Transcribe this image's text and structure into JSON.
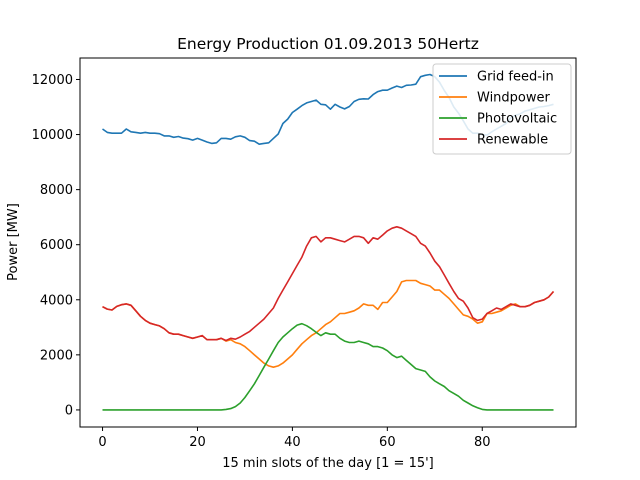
{
  "chart_data": {
    "type": "line",
    "title": "Energy Production 01.09.2013 50Hertz",
    "xlabel": "15 min slots of the day [1 = 15']",
    "ylabel": "Power [MW]",
    "xlim": [
      -4.75,
      99.75
    ],
    "ylim": [
      -620,
      12780
    ],
    "xticks": [
      0,
      20,
      40,
      60,
      80
    ],
    "yticks": [
      0,
      2000,
      4000,
      6000,
      8000,
      10000,
      12000
    ],
    "legend_position": "top-right",
    "grid": false,
    "x": [
      0,
      1,
      2,
      3,
      4,
      5,
      6,
      7,
      8,
      9,
      10,
      11,
      12,
      13,
      14,
      15,
      16,
      17,
      18,
      19,
      20,
      21,
      22,
      23,
      24,
      25,
      26,
      27,
      28,
      29,
      30,
      31,
      32,
      33,
      34,
      35,
      36,
      37,
      38,
      39,
      40,
      41,
      42,
      43,
      44,
      45,
      46,
      47,
      48,
      49,
      50,
      51,
      52,
      53,
      54,
      55,
      56,
      57,
      58,
      59,
      60,
      61,
      62,
      63,
      64,
      65,
      66,
      67,
      68,
      69,
      70,
      71,
      72,
      73,
      74,
      75,
      76,
      77,
      78,
      79,
      80,
      81,
      82,
      83,
      84,
      85,
      86,
      87,
      88,
      89,
      90,
      91,
      92,
      93,
      94,
      95
    ],
    "series": [
      {
        "name": "Grid feed-in",
        "color": "#1f77b4",
        "values": [
          10200,
          10080,
          10050,
          10050,
          10050,
          10200,
          10100,
          10080,
          10050,
          10080,
          10050,
          10050,
          10030,
          9950,
          9950,
          9900,
          9930,
          9870,
          9850,
          9800,
          9860,
          9800,
          9730,
          9680,
          9700,
          9860,
          9860,
          9830,
          9920,
          9950,
          9900,
          9780,
          9760,
          9650,
          9680,
          9700,
          9860,
          10020,
          10400,
          10560,
          10800,
          10920,
          11050,
          11150,
          11200,
          11250,
          11100,
          11080,
          10920,
          11100,
          11000,
          10930,
          11020,
          11200,
          11280,
          11300,
          11290,
          11450,
          11560,
          11610,
          11610,
          11690,
          11760,
          11710,
          11790,
          11800,
          11830,
          12100,
          12150,
          12180,
          12100,
          11900,
          11600,
          11350,
          11000,
          10780,
          10500,
          10200,
          10050,
          10050,
          10000,
          9980,
          10100,
          10200,
          10300,
          10400,
          10600,
          10700,
          10750,
          10850,
          10900,
          10950,
          11000,
          11020,
          11050,
          11100
        ]
      },
      {
        "name": "Windpower",
        "color": "#ff7f0e",
        "values": [
          3750,
          3660,
          3630,
          3760,
          3820,
          3850,
          3800,
          3600,
          3400,
          3250,
          3150,
          3100,
          3050,
          2950,
          2800,
          2750,
          2750,
          2700,
          2650,
          2600,
          2650,
          2700,
          2550,
          2550,
          2550,
          2600,
          2500,
          2550,
          2450,
          2400,
          2300,
          2150,
          2000,
          1850,
          1700,
          1600,
          1550,
          1600,
          1700,
          1850,
          2000,
          2200,
          2400,
          2550,
          2700,
          2800,
          2950,
          3100,
          3200,
          3350,
          3500,
          3500,
          3550,
          3600,
          3700,
          3850,
          3800,
          3800,
          3650,
          3900,
          3900,
          4100,
          4300,
          4650,
          4700,
          4700,
          4700,
          4600,
          4550,
          4500,
          4350,
          4350,
          4200,
          4050,
          3850,
          3650,
          3450,
          3400,
          3300,
          3150,
          3200,
          3500,
          3500,
          3550,
          3600,
          3700,
          3800,
          3850,
          3750,
          3750,
          3800,
          3900,
          3950,
          4000,
          4100,
          4300
        ]
      },
      {
        "name": "Photovoltaic",
        "color": "#2ca02c",
        "values": [
          0,
          0,
          0,
          0,
          0,
          0,
          0,
          0,
          0,
          0,
          0,
          0,
          0,
          0,
          0,
          0,
          0,
          0,
          0,
          0,
          0,
          0,
          0,
          0,
          0,
          0,
          20,
          50,
          120,
          250,
          450,
          700,
          950,
          1250,
          1550,
          1850,
          2150,
          2450,
          2650,
          2800,
          2950,
          3080,
          3130,
          3060,
          2950,
          2820,
          2700,
          2800,
          2750,
          2750,
          2600,
          2500,
          2450,
          2450,
          2500,
          2450,
          2400,
          2300,
          2300,
          2250,
          2150,
          2000,
          1900,
          1950,
          1800,
          1650,
          1500,
          1450,
          1400,
          1200,
          1050,
          950,
          850,
          700,
          600,
          500,
          350,
          250,
          150,
          80,
          20,
          0,
          0,
          0,
          0,
          0,
          0,
          0,
          0,
          0,
          0,
          0,
          0,
          0,
          0,
          0
        ]
      },
      {
        "name": "Renewable",
        "color": "#d62728",
        "values": [
          3750,
          3660,
          3630,
          3760,
          3820,
          3850,
          3800,
          3600,
          3400,
          3250,
          3150,
          3100,
          3050,
          2950,
          2800,
          2750,
          2750,
          2700,
          2650,
          2600,
          2650,
          2700,
          2550,
          2550,
          2550,
          2600,
          2520,
          2600,
          2570,
          2650,
          2750,
          2850,
          3000,
          3150,
          3300,
          3500,
          3700,
          4050,
          4350,
          4650,
          4950,
          5250,
          5550,
          5950,
          6250,
          6300,
          6100,
          6250,
          6250,
          6200,
          6150,
          6100,
          6200,
          6300,
          6300,
          6250,
          6050,
          6250,
          6200,
          6350,
          6500,
          6600,
          6650,
          6600,
          6500,
          6400,
          6300,
          6050,
          5950,
          5700,
          5400,
          5200,
          4900,
          4600,
          4300,
          4050,
          3950,
          3700,
          3350,
          3250,
          3300,
          3500,
          3600,
          3700,
          3650,
          3750,
          3850,
          3800,
          3750,
          3750,
          3800,
          3900,
          3950,
          4000,
          4100,
          4300
        ]
      }
    ]
  }
}
